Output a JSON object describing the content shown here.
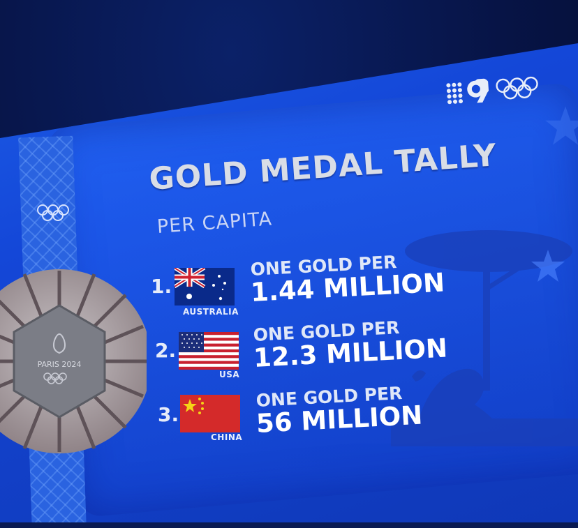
{
  "broadcaster": {
    "logo_text": "9",
    "rings_icon": "olympic-rings-icon"
  },
  "graphic": {
    "title": "GOLD MEDAL TALLY",
    "subtitle": "PER CAPITA"
  },
  "rankings": [
    {
      "rank": "1.",
      "country": "AUSTRALIA",
      "flag": "australia-flag-icon",
      "line1": "ONE GOLD PER",
      "line2": "1.44 MILLION"
    },
    {
      "rank": "2.",
      "country": "USA",
      "flag": "usa-flag-icon",
      "line1": "ONE GOLD PER",
      "line2": "12.3 MILLION"
    },
    {
      "rank": "3.",
      "country": "CHINA",
      "flag": "china-flag-icon",
      "line1": "ONE GOLD PER",
      "line2": "56 MILLION"
    }
  ],
  "medal": {
    "text": "PARIS 2024"
  },
  "colors": {
    "screen_blue": "#1447d8",
    "title_silver": "#d9dde6",
    "text_white": "#ffffff"
  }
}
